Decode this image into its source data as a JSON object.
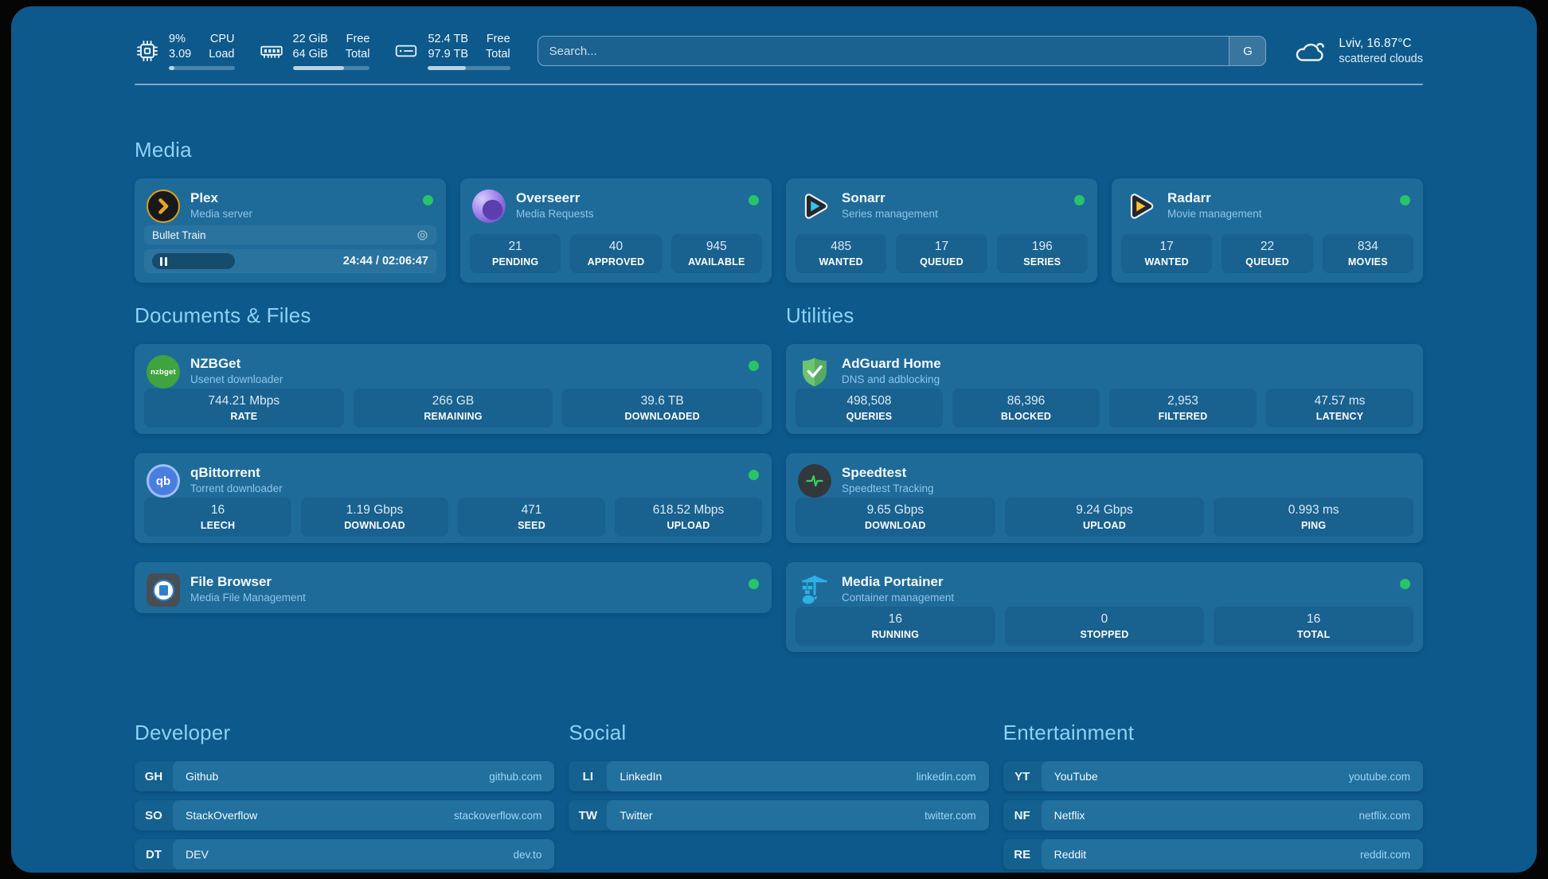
{
  "colors": {
    "bg": "#0d598b",
    "card": "#1e6b9a",
    "statbox": "#19618f",
    "accent": "#8ed1f5",
    "subtitle": "#8fc5e8",
    "green": "#27c468",
    "domain": "#9fd6f7",
    "pill": "#21709e",
    "abbr": "#14608e"
  },
  "header": {
    "system_stats": [
      {
        "name": "cpu",
        "values": [
          "9%",
          "3.09"
        ],
        "labels": [
          "CPU",
          "Load"
        ],
        "progress_pct": 9
      },
      {
        "name": "memory",
        "values": [
          "22 GiB",
          "64 GiB"
        ],
        "labels": [
          "Free",
          "Total"
        ],
        "progress_pct": 66
      },
      {
        "name": "storage",
        "values": [
          "52.4 TB",
          "97.9 TB"
        ],
        "labels": [
          "Free",
          "Total"
        ],
        "progress_pct": 46
      }
    ],
    "search": {
      "placeholder": "Search...",
      "button_label": "G"
    },
    "weather": {
      "location_temp": "Lviv, 16.87°C",
      "condition": "scattered clouds"
    }
  },
  "media": {
    "title": "Media",
    "plex": {
      "name": "Plex",
      "subtitle": "Media server",
      "now_playing": "Bullet Train",
      "time": "24:44 / 02:06:47"
    },
    "overseerr": {
      "name": "Overseerr",
      "subtitle": "Media Requests",
      "stats": [
        {
          "value": "21",
          "label": "PENDING"
        },
        {
          "value": "40",
          "label": "APPROVED"
        },
        {
          "value": "945",
          "label": "AVAILABLE"
        }
      ]
    },
    "sonarr": {
      "name": "Sonarr",
      "subtitle": "Series management",
      "stats": [
        {
          "value": "485",
          "label": "WANTED"
        },
        {
          "value": "17",
          "label": "QUEUED"
        },
        {
          "value": "196",
          "label": "SERIES"
        }
      ]
    },
    "radarr": {
      "name": "Radarr",
      "subtitle": "Movie management",
      "stats": [
        {
          "value": "17",
          "label": "WANTED"
        },
        {
          "value": "22",
          "label": "QUEUED"
        },
        {
          "value": "834",
          "label": "MOVIES"
        }
      ]
    }
  },
  "documents": {
    "title": "Documents & Files",
    "nzbget": {
      "name": "NZBGet",
      "subtitle": "Usenet downloader",
      "icon_text": "nzbget",
      "stats": [
        {
          "value": "744.21 Mbps",
          "label": "RATE"
        },
        {
          "value": "266 GB",
          "label": "REMAINING"
        },
        {
          "value": "39.6 TB",
          "label": "DOWNLOADED"
        }
      ]
    },
    "qbittorrent": {
      "name": "qBittorrent",
      "subtitle": "Torrent downloader",
      "icon_text": "qb",
      "stats": [
        {
          "value": "16",
          "label": "LEECH"
        },
        {
          "value": "1.19 Gbps",
          "label": "DOWNLOAD"
        },
        {
          "value": "471",
          "label": "SEED"
        },
        {
          "value": "618.52 Mbps",
          "label": "UPLOAD"
        }
      ]
    },
    "filebrowser": {
      "name": "File Browser",
      "subtitle": "Media File Management"
    }
  },
  "utilities": {
    "title": "Utilities",
    "adguard": {
      "name": "AdGuard Home",
      "subtitle": "DNS and adblocking",
      "stats": [
        {
          "value": "498,508",
          "label": "QUERIES"
        },
        {
          "value": "86,396",
          "label": "BLOCKED"
        },
        {
          "value": "2,953",
          "label": "FILTERED"
        },
        {
          "value": "47.57 ms",
          "label": "LATENCY"
        }
      ]
    },
    "speedtest": {
      "name": "Speedtest",
      "subtitle": "Speedtest Tracking",
      "stats": [
        {
          "value": "9.65 Gbps",
          "label": "DOWNLOAD"
        },
        {
          "value": "9.24 Gbps",
          "label": "UPLOAD"
        },
        {
          "value": "0.993 ms",
          "label": "PING"
        }
      ]
    },
    "portainer": {
      "name": "Media Portainer",
      "subtitle": "Container management",
      "stats": [
        {
          "value": "16",
          "label": "RUNNING"
        },
        {
          "value": "0",
          "label": "STOPPED"
        },
        {
          "value": "16",
          "label": "TOTAL"
        }
      ]
    }
  },
  "bookmarks": [
    {
      "title": "Developer",
      "items": [
        {
          "abbr": "GH",
          "name": "Github",
          "domain": "github.com"
        },
        {
          "abbr": "SO",
          "name": "StackOverflow",
          "domain": "stackoverflow.com"
        },
        {
          "abbr": "DT",
          "name": "DEV",
          "domain": "dev.to"
        }
      ]
    },
    {
      "title": "Social",
      "items": [
        {
          "abbr": "LI",
          "name": "LinkedIn",
          "domain": "linkedin.com"
        },
        {
          "abbr": "TW",
          "name": "Twitter",
          "domain": "twitter.com"
        }
      ]
    },
    {
      "title": "Entertainment",
      "items": [
        {
          "abbr": "YT",
          "name": "YouTube",
          "domain": "youtube.com"
        },
        {
          "abbr": "NF",
          "name": "Netflix",
          "domain": "netflix.com"
        },
        {
          "abbr": "RE",
          "name": "Reddit",
          "domain": "reddit.com"
        }
      ]
    }
  ]
}
